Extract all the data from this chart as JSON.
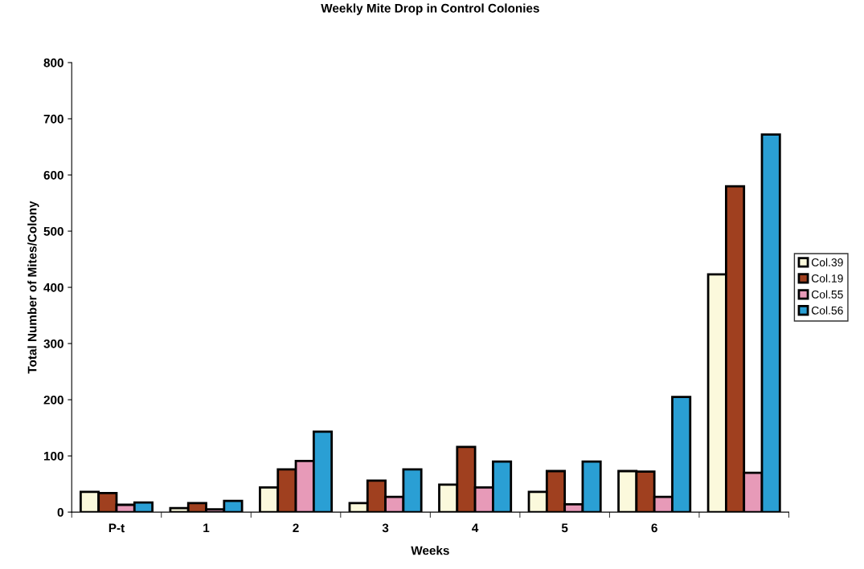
{
  "chart_data": {
    "type": "bar",
    "title": "Weekly Mite Drop in Control Colonies",
    "xlabel": "Weeks",
    "ylabel": "Total Number of Mites/Colony",
    "categories": [
      "P-t",
      "1",
      "2",
      "3",
      "4",
      "5",
      "6",
      null
    ],
    "series": [
      {
        "name": "Col.39",
        "color": "#fbf9dc",
        "values": [
          36,
          7,
          44,
          16,
          49,
          36,
          73,
          423
        ]
      },
      {
        "name": "Col.19",
        "color": "#a0401f",
        "values": [
          34,
          16,
          76,
          56,
          116,
          73,
          72,
          580
        ]
      },
      {
        "name": "Col.55",
        "color": "#e79ab8",
        "values": [
          13,
          5,
          91,
          27,
          44,
          14,
          27,
          70
        ]
      },
      {
        "name": "Col.56",
        "color": "#2a9fd4",
        "values": [
          17,
          20,
          143,
          76,
          90,
          90,
          205,
          672
        ]
      }
    ],
    "ylim": [
      0,
      800
    ],
    "yticks": [
      0,
      100,
      200,
      300,
      400,
      500,
      600,
      700,
      800
    ],
    "grid": false,
    "legend": "right"
  }
}
